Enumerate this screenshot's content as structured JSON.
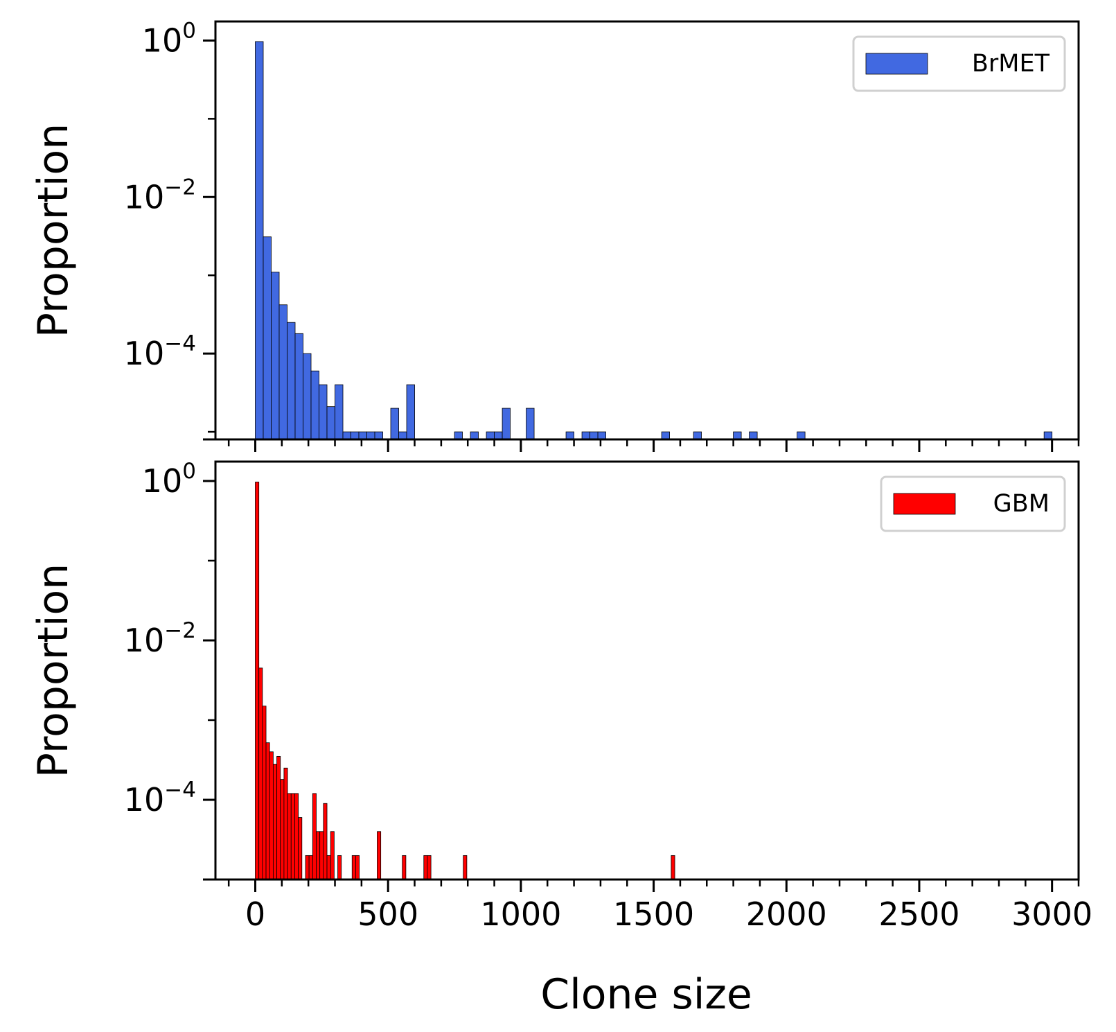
{
  "chart_data": [
    {
      "type": "bar",
      "panel": "top",
      "xlabel": "",
      "ylabel": "Proportion",
      "yscale": "log",
      "xlim": [
        -150,
        3100
      ],
      "ylim": [
        8e-06,
        1.75
      ],
      "x_ticks": [
        0,
        500,
        1000,
        1500,
        2000,
        2500,
        3000
      ],
      "x_tick_labels": [
        "",
        "",
        "",
        "",
        "",
        "",
        ""
      ],
      "y_ticks": [
        {
          "value": 1,
          "base": "10",
          "exp": "0"
        },
        {
          "value": 0.01,
          "base": "10",
          "exp": "−2"
        },
        {
          "value": 0.0001,
          "base": "10",
          "exp": "−4"
        }
      ],
      "grid": false,
      "legend_position": "top-right",
      "color": "#4169e1",
      "series": [
        {
          "name": "BrMET",
          "bin_width": 30,
          "x": [
            0,
            30,
            60,
            90,
            120,
            150,
            180,
            210,
            240,
            270,
            300,
            330,
            360,
            390,
            420,
            450,
            510,
            540,
            570,
            750,
            810,
            870,
            900,
            930,
            1020,
            1170,
            1230,
            1260,
            1290,
            1530,
            1650,
            1800,
            1860,
            2040,
            2970
          ],
          "values": [
            0.97,
            0.0031,
            0.0011,
            0.00042,
            0.00025,
            0.00018,
            0.0001,
            6e-05,
            4e-05,
            2.1e-05,
            4e-05,
            1e-05,
            1e-05,
            1e-05,
            1e-05,
            1e-05,
            2e-05,
            1e-05,
            4e-05,
            1e-05,
            1e-05,
            1e-05,
            1e-05,
            2e-05,
            2e-05,
            1e-05,
            1e-05,
            1e-05,
            1e-05,
            1e-05,
            1e-05,
            1e-05,
            1e-05,
            1e-05,
            1e-05
          ]
        }
      ]
    },
    {
      "type": "bar",
      "panel": "bottom",
      "xlabel": "Clone size",
      "ylabel": "Proportion",
      "yscale": "log",
      "xlim": [
        -150,
        3100
      ],
      "ylim": [
        1e-05,
        1.75
      ],
      "x_ticks": [
        0,
        500,
        1000,
        1500,
        2000,
        2500,
        3000
      ],
      "x_tick_labels": [
        "0",
        "500",
        "1000",
        "1500",
        "2000",
        "2500",
        "3000"
      ],
      "y_ticks": [
        {
          "value": 1,
          "base": "10",
          "exp": "0"
        },
        {
          "value": 0.01,
          "base": "10",
          "exp": "−2"
        },
        {
          "value": 0.0001,
          "base": "10",
          "exp": "−4"
        }
      ],
      "grid": false,
      "legend_position": "top-right",
      "color": "#ff0000",
      "series": [
        {
          "name": "GBM",
          "bin_width": 13.5,
          "x": [
            0,
            13.5,
            27,
            40.5,
            54,
            67.5,
            81,
            94.5,
            108,
            121.5,
            135,
            148.5,
            162,
            189,
            202.5,
            216,
            229.5,
            243,
            256.5,
            270,
            283.5,
            310.5,
            364.5,
            378,
            459,
            553.5,
            634.5,
            648,
            783,
            1566
          ],
          "values": [
            0.97,
            0.0045,
            0.0015,
            0.00052,
            0.0004,
            0.00028,
            0.00035,
            0.00018,
            0.00025,
            0.00012,
            0.00012,
            0.00012,
            6e-05,
            2e-05,
            2e-05,
            0.00012,
            4e-05,
            4e-05,
            9e-05,
            2e-05,
            4e-05,
            2e-05,
            2e-05,
            2e-05,
            4e-05,
            2e-05,
            2e-05,
            2e-05,
            2e-05,
            2e-05
          ]
        }
      ]
    }
  ]
}
